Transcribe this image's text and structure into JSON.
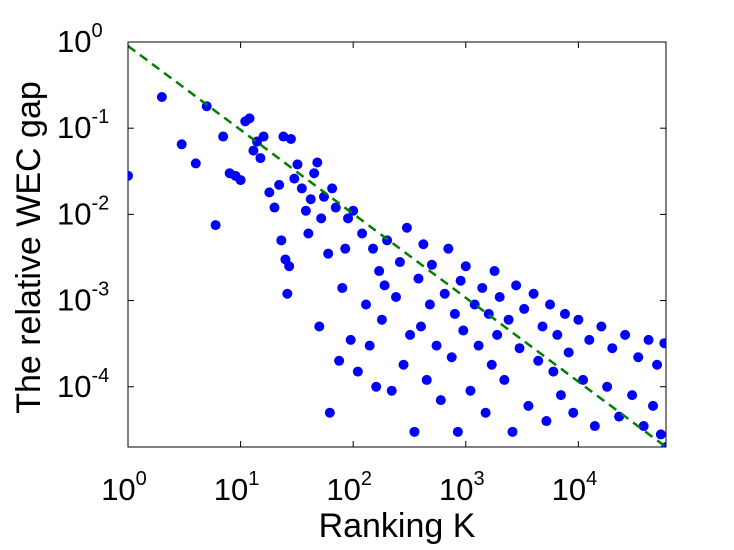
{
  "chart_data": {
    "type": "scatter",
    "title": "",
    "xlabel": "Ranking K",
    "ylabel": "The relative WEC gap",
    "x_scale": "log",
    "y_scale": "log",
    "xlim": [
      1,
      60000
    ],
    "ylim": [
      2e-05,
      1
    ],
    "grid": false,
    "legend": "none",
    "colors": {
      "points": "#0000ff",
      "reference_line": "#008000",
      "axes": "#000000",
      "background": "#ffffff"
    },
    "x_ticks": [
      {
        "base": "10",
        "exp": "0",
        "value": 1
      },
      {
        "base": "10",
        "exp": "1",
        "value": 10
      },
      {
        "base": "10",
        "exp": "2",
        "value": 100
      },
      {
        "base": "10",
        "exp": "3",
        "value": 1000
      },
      {
        "base": "10",
        "exp": "4",
        "value": 10000
      }
    ],
    "y_ticks": [
      {
        "base": "10",
        "exp": "0",
        "value": 1
      },
      {
        "base": "10",
        "exp": "-1",
        "value": 0.1
      },
      {
        "base": "10",
        "exp": "-2",
        "value": 0.01
      },
      {
        "base": "10",
        "exp": "-3",
        "value": 0.001
      },
      {
        "base": "10",
        "exp": "-4",
        "value": 0.0001
      }
    ],
    "reference_line": {
      "style": "dashed",
      "x": [
        1,
        60000
      ],
      "y": [
        0.9,
        2e-05
      ]
    },
    "series": [
      {
        "marker": "filled-circle",
        "points": [
          [
            1,
            0.028
          ],
          [
            2,
            0.23
          ],
          [
            3,
            0.065
          ],
          [
            4,
            0.039
          ],
          [
            5,
            0.18
          ],
          [
            6,
            0.0075
          ],
          [
            7,
            0.08
          ],
          [
            8,
            0.03
          ],
          [
            9,
            0.028
          ],
          [
            10,
            0.025
          ],
          [
            11,
            0.12
          ],
          [
            12,
            0.13
          ],
          [
            13,
            0.055
          ],
          [
            14,
            0.07
          ],
          [
            15,
            0.045
          ],
          [
            16,
            0.08
          ],
          [
            18,
            0.018
          ],
          [
            20,
            0.012
          ],
          [
            22,
            0.022
          ],
          [
            23,
            0.005
          ],
          [
            24,
            0.08
          ],
          [
            25,
            0.003
          ],
          [
            26,
            0.0012
          ],
          [
            27,
            0.0025
          ],
          [
            28,
            0.075
          ],
          [
            30,
            0.026
          ],
          [
            32,
            0.038
          ],
          [
            35,
            0.02
          ],
          [
            38,
            0.011
          ],
          [
            40,
            0.006
          ],
          [
            42,
            0.015
          ],
          [
            45,
            0.03
          ],
          [
            48,
            0.04
          ],
          [
            50,
            0.0005
          ],
          [
            52,
            0.009
          ],
          [
            55,
            0.016
          ],
          [
            60,
            0.0035
          ],
          [
            62,
            5e-05
          ],
          [
            65,
            0.02
          ],
          [
            70,
            0.012
          ],
          [
            75,
            0.0002
          ],
          [
            80,
            0.0014
          ],
          [
            85,
            0.004
          ],
          [
            90,
            0.009
          ],
          [
            95,
            0.00035
          ],
          [
            100,
            0.011
          ],
          [
            110,
            0.00015
          ],
          [
            120,
            0.006
          ],
          [
            130,
            0.0009
          ],
          [
            140,
            0.0003
          ],
          [
            150,
            0.004
          ],
          [
            160,
            0.0001
          ],
          [
            170,
            0.0022
          ],
          [
            180,
            0.0006
          ],
          [
            190,
            0.0015
          ],
          [
            200,
            0.005
          ],
          [
            220,
            9e-05
          ],
          [
            240,
            0.0011
          ],
          [
            260,
            0.0028
          ],
          [
            280,
            0.00018
          ],
          [
            300,
            0.007
          ],
          [
            320,
            0.0004
          ],
          [
            350,
            3e-05
          ],
          [
            380,
            0.0018
          ],
          [
            400,
            0.0005
          ],
          [
            420,
            0.0045
          ],
          [
            450,
            0.00012
          ],
          [
            480,
            0.0009
          ],
          [
            500,
            0.0026
          ],
          [
            550,
            0.0003
          ],
          [
            600,
            7e-05
          ],
          [
            650,
            0.0012
          ],
          [
            700,
            0.004
          ],
          [
            750,
            0.00022
          ],
          [
            800,
            0.0007
          ],
          [
            850,
            3e-05
          ],
          [
            900,
            0.0017
          ],
          [
            950,
            0.00045
          ],
          [
            1000,
            0.0025
          ],
          [
            1100,
            9e-05
          ],
          [
            1200,
            0.0009
          ],
          [
            1300,
            0.0003
          ],
          [
            1400,
            0.0014
          ],
          [
            1500,
            5e-05
          ],
          [
            1600,
            0.0007
          ],
          [
            1700,
            0.00018
          ],
          [
            1800,
            0.0022
          ],
          [
            1900,
            0.0004
          ],
          [
            2000,
            0.0011
          ],
          [
            2200,
            0.00012
          ],
          [
            2400,
            0.0006
          ],
          [
            2600,
            3e-05
          ],
          [
            2800,
            0.0015
          ],
          [
            3000,
            0.00028
          ],
          [
            3300,
            0.0008
          ],
          [
            3600,
            6e-05
          ],
          [
            4000,
            0.0012
          ],
          [
            4400,
            0.0002
          ],
          [
            4800,
            0.0005
          ],
          [
            5200,
            4e-05
          ],
          [
            5600,
            0.0009
          ],
          [
            6000,
            0.00015
          ],
          [
            6500,
            0.0004
          ],
          [
            7000,
            8e-05
          ],
          [
            7600,
            0.0007
          ],
          [
            8200,
            0.00025
          ],
          [
            9000,
            5e-05
          ],
          [
            10000,
            0.0006
          ],
          [
            11000,
            0.00012
          ],
          [
            12500,
            0.00035
          ],
          [
            14000,
            3.5e-05
          ],
          [
            16000,
            0.0005
          ],
          [
            18000,
            0.0001
          ],
          [
            20000,
            0.00028
          ],
          [
            23000,
            4.5e-05
          ],
          [
            26000,
            0.0004
          ],
          [
            30000,
            8e-05
          ],
          [
            34000,
            0.00022
          ],
          [
            38000,
            3.5e-05
          ],
          [
            42000,
            0.00035
          ],
          [
            46000,
            6e-05
          ],
          [
            50000,
            0.00018
          ],
          [
            54000,
            2.8e-05
          ],
          [
            58000,
            0.00032
          ],
          [
            60000,
            2e-05
          ]
        ]
      }
    ]
  }
}
